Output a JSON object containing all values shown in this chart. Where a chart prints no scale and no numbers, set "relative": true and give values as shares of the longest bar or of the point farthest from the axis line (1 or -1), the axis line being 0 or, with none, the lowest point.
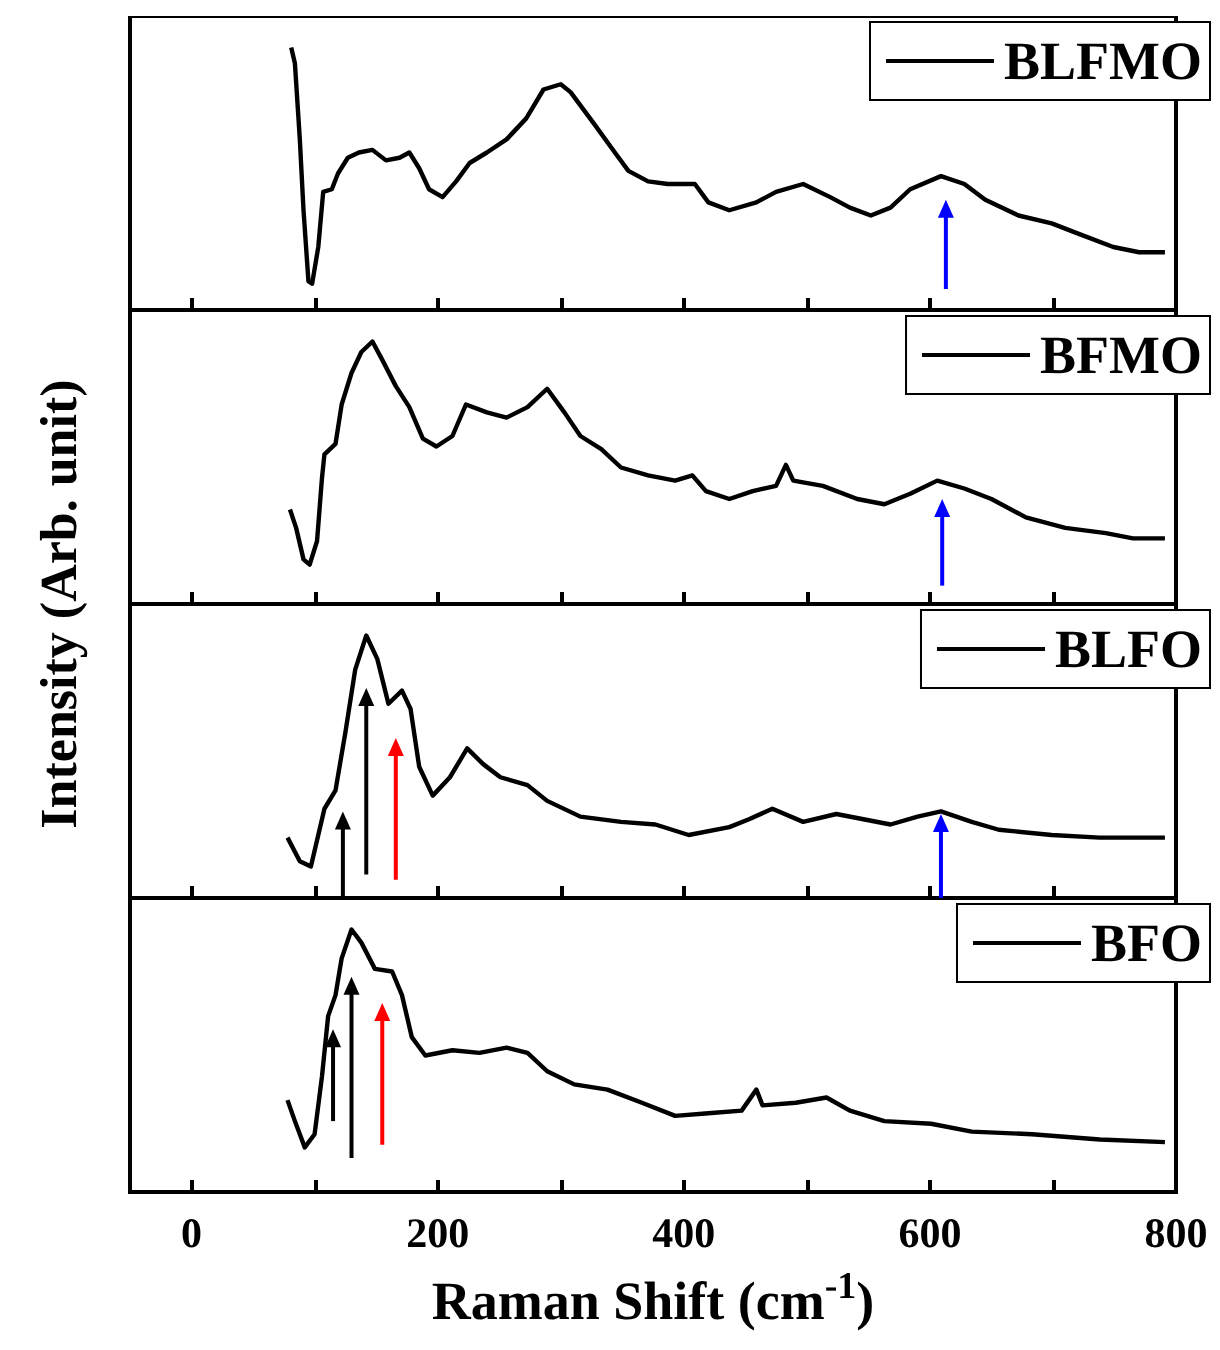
{
  "chart_data": [
    {
      "type": "line",
      "relative": true,
      "legend": "top right",
      "tick_labels": false,
      "xlim": [
        -50,
        800
      ],
      "xticks": [
        0,
        {
          "value": 100,
          "label": null
        },
        200,
        {
          "value": 300,
          "label": null
        },
        400,
        {
          "value": 500,
          "label": null
        },
        600,
        {
          "value": 700,
          "label": null
        },
        800
      ],
      "series": [
        {
          "name": "BLFMO",
          "color": "#000000",
          "x": [
            81,
            84,
            88,
            91,
            95,
            98,
            103,
            107,
            114,
            119,
            127,
            136,
            147,
            158,
            169,
            177,
            185,
            193,
            204,
            215,
            226,
            240,
            256,
            272,
            286,
            300,
            308,
            327,
            344,
            355,
            371,
            387,
            409,
            420,
            437,
            459,
            475,
            497,
            519,
            535,
            552,
            568,
            584,
            609,
            628,
            645,
            672,
            699,
            721,
            749,
            770,
            791
          ],
          "values": [
            1.0,
            0.94,
            0.65,
            0.38,
            0.11,
            0.1,
            0.24,
            0.45,
            0.46,
            0.52,
            0.58,
            0.6,
            0.61,
            0.57,
            0.58,
            0.6,
            0.54,
            0.46,
            0.43,
            0.49,
            0.56,
            0.6,
            0.65,
            0.73,
            0.84,
            0.86,
            0.83,
            0.71,
            0.6,
            0.53,
            0.49,
            0.48,
            0.48,
            0.41,
            0.38,
            0.41,
            0.45,
            0.48,
            0.43,
            0.39,
            0.36,
            0.39,
            0.46,
            0.51,
            0.48,
            0.42,
            0.36,
            0.33,
            0.29,
            0.24,
            0.22,
            0.22
          ]
        }
      ]
    },
    {
      "type": "line",
      "relative": true,
      "legend": "top right",
      "tick_labels": false,
      "xlim": [
        -50,
        800
      ],
      "xticks": [
        0,
        {
          "value": 100,
          "label": null
        },
        200,
        {
          "value": 300,
          "label": null
        },
        400,
        {
          "value": 500,
          "label": null
        },
        600,
        {
          "value": 700,
          "label": null
        },
        800
      ],
      "series": [
        {
          "name": "BFMO",
          "color": "#000000",
          "x": [
            80,
            85,
            91,
            96,
            102,
            106,
            108,
            117,
            122,
            130,
            138,
            147,
            155,
            166,
            177,
            188,
            199,
            212,
            223,
            240,
            256,
            273,
            289,
            303,
            316,
            333,
            349,
            371,
            393,
            407,
            418,
            437,
            456,
            475,
            483,
            489,
            513,
            541,
            563,
            584,
            606,
            628,
            650,
            678,
            710,
            743,
            765,
            791
          ],
          "values": [
            0.36,
            0.29,
            0.17,
            0.15,
            0.24,
            0.48,
            0.57,
            0.61,
            0.76,
            0.88,
            0.96,
            1.0,
            0.93,
            0.83,
            0.75,
            0.63,
            0.6,
            0.64,
            0.76,
            0.73,
            0.71,
            0.75,
            0.82,
            0.73,
            0.64,
            0.59,
            0.52,
            0.49,
            0.47,
            0.49,
            0.43,
            0.4,
            0.43,
            0.45,
            0.53,
            0.47,
            0.45,
            0.4,
            0.38,
            0.42,
            0.47,
            0.44,
            0.4,
            0.33,
            0.29,
            0.27,
            0.25,
            0.25
          ]
        }
      ]
    },
    {
      "type": "line",
      "relative": true,
      "legend": "top right",
      "tick_labels": false,
      "xlim": [
        -50,
        800
      ],
      "xticks": [
        0,
        {
          "value": 100,
          "label": null
        },
        200,
        {
          "value": 300,
          "label": null
        },
        400,
        {
          "value": 500,
          "label": null
        },
        600,
        {
          "value": 700,
          "label": null
        },
        800
      ],
      "series": [
        {
          "name": "BLFO",
          "color": "#000000",
          "x": [
            78,
            88,
            97,
            104,
            108,
            117,
            125,
            133,
            142,
            151,
            160,
            171,
            178,
            185,
            196,
            210,
            224,
            237,
            251,
            273,
            289,
            316,
            349,
            377,
            404,
            437,
            453,
            472,
            497,
            524,
            546,
            568,
            590,
            609,
            634,
            656,
            699,
            738,
            791
          ],
          "values": [
            0.23,
            0.14,
            0.12,
            0.26,
            0.34,
            0.41,
            0.63,
            0.87,
            1.0,
            0.91,
            0.74,
            0.79,
            0.72,
            0.5,
            0.39,
            0.46,
            0.57,
            0.51,
            0.46,
            0.43,
            0.37,
            0.31,
            0.29,
            0.28,
            0.24,
            0.27,
            0.3,
            0.34,
            0.29,
            0.32,
            0.3,
            0.28,
            0.31,
            0.33,
            0.29,
            0.26,
            0.24,
            0.23,
            0.23
          ]
        }
      ]
    },
    {
      "type": "line",
      "relative": true,
      "legend": "top right",
      "tick_labels": "x",
      "xlabel": "Raman Shift (cm$^{-1}$)",
      "ylabel": "Intensity (Arb. unit)",
      "xlim": [
        -50,
        800
      ],
      "xticks": [
        0,
        {
          "value": 100,
          "label": null
        },
        200,
        {
          "value": 300,
          "label": null
        },
        400,
        {
          "value": 500,
          "label": null
        },
        600,
        {
          "value": 700,
          "label": null
        },
        800
      ],
      "series": [
        {
          "name": "BFO",
          "color": "#000000",
          "x": [
            78,
            84,
            92,
            100,
            106,
            111,
            117,
            122,
            130,
            138,
            149,
            163,
            171,
            179,
            190,
            212,
            234,
            256,
            273,
            289,
            311,
            338,
            366,
            393,
            420,
            447,
            459,
            464,
            491,
            516,
            535,
            563,
            601,
            634,
            683,
            738,
            791
          ],
          "values": [
            0.35,
            0.27,
            0.17,
            0.22,
            0.44,
            0.67,
            0.75,
            0.89,
            1.0,
            0.95,
            0.85,
            0.84,
            0.75,
            0.59,
            0.52,
            0.54,
            0.53,
            0.55,
            0.53,
            0.46,
            0.41,
            0.39,
            0.34,
            0.29,
            0.3,
            0.31,
            0.39,
            0.33,
            0.34,
            0.36,
            0.31,
            0.27,
            0.26,
            0.23,
            0.22,
            0.2,
            0.19
          ]
        }
      ]
    }
  ]
}
